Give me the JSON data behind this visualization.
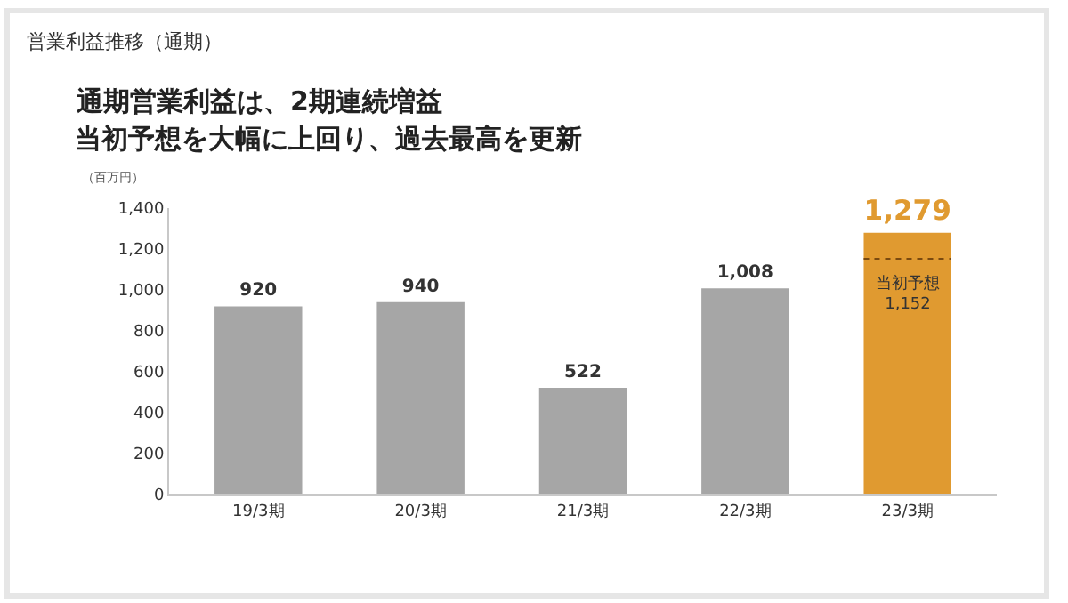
{
  "chart_data": {
    "type": "bar",
    "title": "営業利益推移（通期）",
    "subtitle": "通期営業利益は、2期連続増益",
    "ylabel": "（百万円）",
    "categories": [
      "19/3期",
      "20/3期",
      "21/3期",
      "22/3期",
      "23/3期"
    ],
    "values": [
      920,
      940,
      522,
      1008,
      1279
    ],
    "colors": [
      "#a6a6a6",
      "#a6a6a6",
      "#a6a6a6",
      "#a6a6a6",
      "#e09a30"
    ],
    "value_labels": [
      "920",
      "940",
      "522",
      "1,008",
      "1,279"
    ],
    "ylim": [
      0,
      1400
    ],
    "yticks": [
      0,
      200,
      400,
      600,
      800,
      {
        "value": 1000,
        "label": "1,000"
      },
      {
        "value": 1200,
        "label": "1,200"
      },
      {
        "value": 1400,
        "label": "1,400"
      }
    ],
    "ref_lines": [
      {
        "axis": "y",
        "value": 1152,
        "label": "当初予想\n1,152",
        "line_style": "dotted",
        "color": "#7a4a10"
      }
    ],
    "annotations": [
      "当初予想を大幅に上回り、過去最高を更新"
    ],
    "legend": false
  }
}
